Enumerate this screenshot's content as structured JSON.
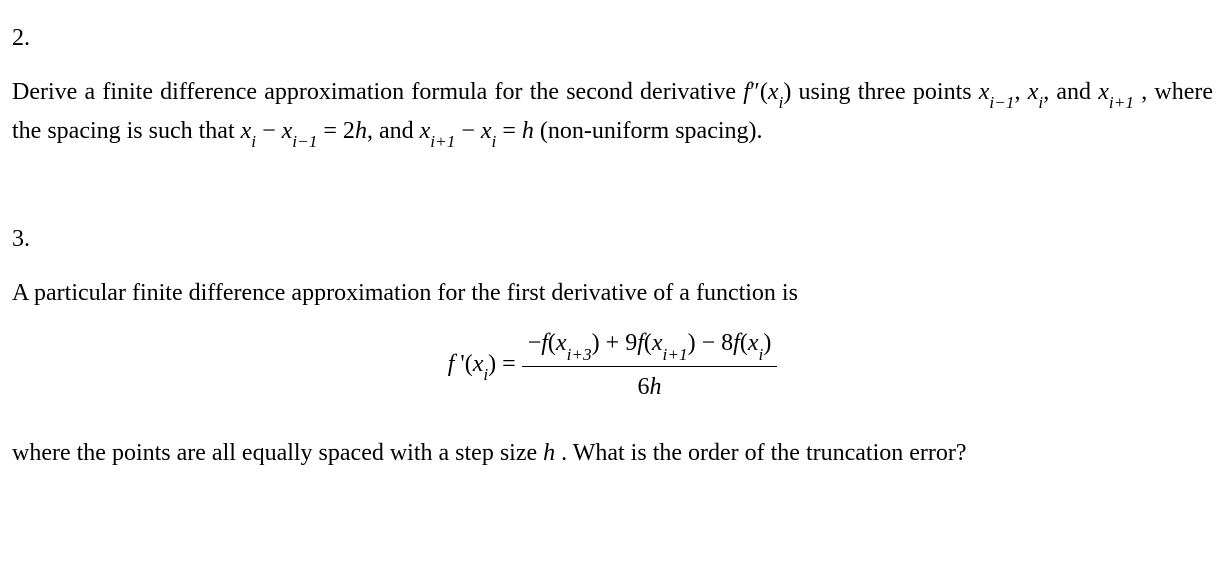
{
  "colors": {
    "text": "#000000",
    "background": "#ffffff"
  },
  "typography": {
    "family": "Times New Roman",
    "base_size_pt": 18
  },
  "q2": {
    "number": "2.",
    "t1": "Derive  a  finite  difference  approximation  formula  for  the  second  derivative ",
    "fpp_f": "f",
    "fpp_prime": "″",
    "fpp_open": "(",
    "fpp_x": "x",
    "fpp_i": "i",
    "fpp_close": ")",
    "t2": " using  three points ",
    "x_im1_x": "x",
    "x_im1_sub": "i−1",
    "comma1": ", ",
    "x_i_x": "x",
    "x_i_sub": "i",
    "comma2": ", ",
    "and1": "and ",
    "x_ip1_x": "x",
    "x_ip1_sub": "i+1",
    "t3": " ,  where  the  spacing  is  such  that  ",
    "eq1_lhs_x1_x": "x",
    "eq1_lhs_x1_sub": "i",
    "minus1": " − ",
    "eq1_lhs_x2_x": "x",
    "eq1_lhs_x2_sub": "i−1",
    "eq1_eq": " = 2",
    "eq1_h": "h",
    "commaand": ", and ",
    "eq2_lhs_x1_x": "x",
    "eq2_lhs_x1_sub": "i+1",
    "minus2": " − ",
    "eq2_lhs_x2_x": "x",
    "eq2_lhs_x2_sub": "i",
    "eq2_eq": " = ",
    "eq2_h": "h",
    "t4": "  (non-uniform spacing)."
  },
  "q3": {
    "number": "3.",
    "intro": "A particular finite difference approximation for the first derivative of a function is",
    "formula": {
      "lhs_f": "f",
      "lhs_prime": " '",
      "lhs_open": "(",
      "lhs_x": "x",
      "lhs_i": "i",
      "lhs_close": ") = ",
      "num_m": "−",
      "num_f1_f": "f",
      "num_f1_open": "(",
      "num_f1_x": "x",
      "num_f1_sub": "i+3",
      "num_f1_close": ")",
      "num_p1": " + 9",
      "num_f2_f": "f",
      "num_f2_open": "(",
      "num_f2_x": "x",
      "num_f2_sub": "i+1",
      "num_f2_close": ")",
      "num_m2": " − 8",
      "num_f3_f": "f",
      "num_f3_open": "(",
      "num_f3_x": "x",
      "num_f3_sub": "i",
      "num_f3_close": ")",
      "den_6": "6",
      "den_h": "h"
    },
    "closing_a": "where the points are all equally spaced with a step size  ",
    "closing_h": "h",
    "closing_b": " .  What is the order of the truncation error?"
  }
}
